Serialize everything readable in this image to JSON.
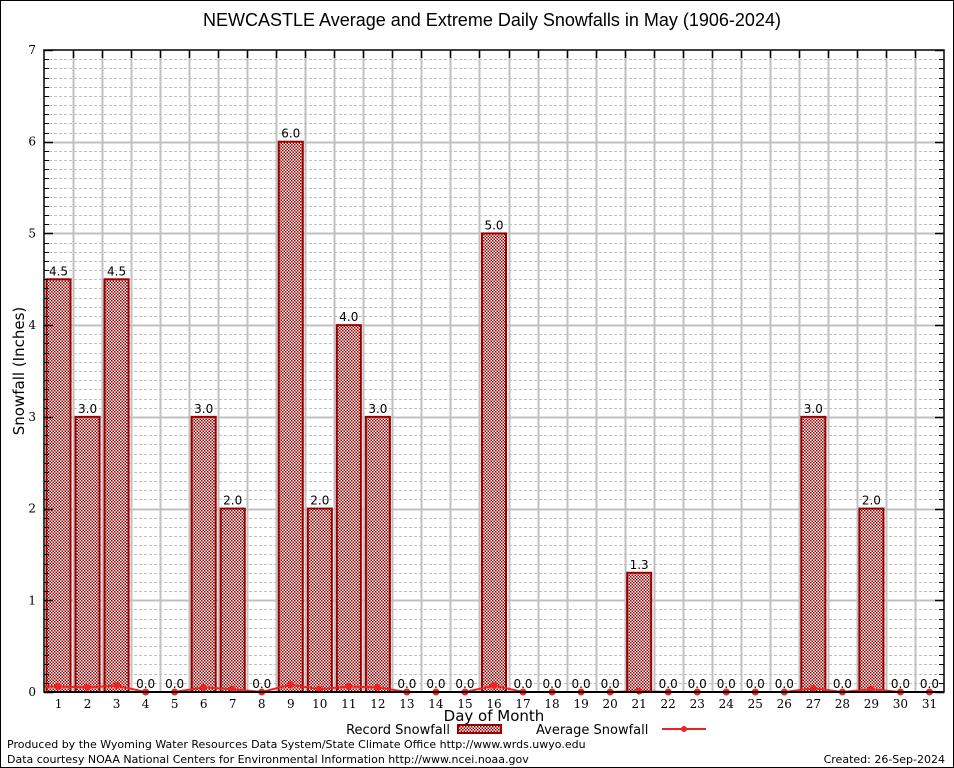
{
  "chart_data": {
    "type": "bar",
    "title": "NEWCASTLE Average and Extreme Daily Snowfalls in May (1906-2024)",
    "xlabel": "Day of Month",
    "ylabel": "Snowfall (Inches)",
    "ylim": [
      0,
      7
    ],
    "yticks": [
      0,
      1,
      2,
      3,
      4,
      5,
      6,
      7
    ],
    "minor_ystep": 0.1,
    "grid": true,
    "legend_position": "bottom-center",
    "categories": [
      "1",
      "2",
      "3",
      "4",
      "5",
      "6",
      "7",
      "8",
      "9",
      "10",
      "11",
      "12",
      "13",
      "14",
      "15",
      "16",
      "17",
      "18",
      "19",
      "20",
      "21",
      "22",
      "23",
      "24",
      "25",
      "26",
      "27",
      "28",
      "29",
      "30",
      "31"
    ],
    "series": [
      {
        "name": "Record Snowfall",
        "type": "bar",
        "color": "#990000",
        "values": [
          4.5,
          3.0,
          4.5,
          0.0,
          0.0,
          3.0,
          2.0,
          0.0,
          6.0,
          2.0,
          4.0,
          3.0,
          0.0,
          0.0,
          0.0,
          5.0,
          0.0,
          0.0,
          0.0,
          0.0,
          1.3,
          0.0,
          0.0,
          0.0,
          0.0,
          0.0,
          3.0,
          0.0,
          2.0,
          0.0,
          0.0
        ],
        "labels": [
          "4.5",
          "3.0",
          "4.5",
          "0.0",
          "0.0",
          "3.0",
          "2.0",
          "0.0",
          "6.0",
          "2.0",
          "4.0",
          "3.0",
          "0.0",
          "0.0",
          "0.0",
          "5.0",
          "0.0",
          "0.0",
          "0.0",
          "0.0",
          "1.3",
          "0.0",
          "0.0",
          "0.0",
          "0.0",
          "0.0",
          "3.0",
          "0.0",
          "2.0",
          "0.0",
          "0.0"
        ]
      },
      {
        "name": "Average Snowfall",
        "type": "line",
        "color": "#ee2222",
        "values": [
          0.06,
          0.05,
          0.07,
          0.0,
          0.0,
          0.05,
          0.03,
          0.0,
          0.08,
          0.03,
          0.06,
          0.05,
          0.0,
          0.0,
          0.0,
          0.07,
          0.0,
          0.0,
          0.0,
          0.0,
          0.01,
          0.0,
          0.0,
          0.0,
          0.0,
          0.0,
          0.04,
          0.0,
          0.03,
          0.0,
          0.0
        ]
      }
    ]
  },
  "footer": {
    "line1": "Produced by the Wyoming Water Resources Data System/State Climate Office http://www.wrds.uwyo.edu",
    "line2": "Data courtesy NOAA National Centers for Environmental Information http://www.ncei.noaa.gov",
    "created": "Created: 26-Sep-2024"
  },
  "colors": {
    "bar_border": "#990000",
    "bar_fill_dark": "#990000",
    "line": "#ee2222",
    "grid": "#c0c0c0"
  }
}
